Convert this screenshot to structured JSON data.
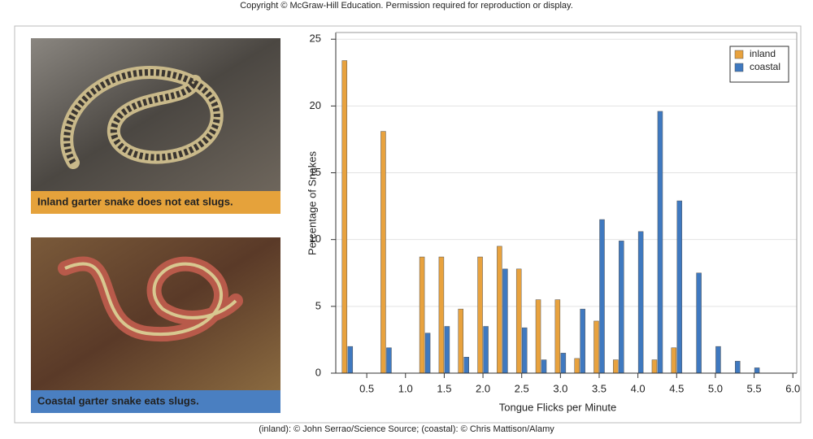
{
  "copyright": "Copyright © McGraw-Hill Education. Permission required for reproduction or display.",
  "panels": [
    {
      "caption": "Inland garter snake does not eat slugs."
    },
    {
      "caption": "Coastal garter snake eats slugs."
    }
  ],
  "credit": "(inland): © John Serrao/Science Source; (coastal): © Chris Mattison/Alamy",
  "chart_data": {
    "type": "bar",
    "xlabel": "Tongue Flicks per Minute",
    "ylabel": "Percentage of Snakes",
    "x": [
      0.25,
      0.75,
      1.25,
      1.5,
      1.75,
      2.0,
      2.25,
      2.5,
      2.75,
      3.0,
      3.25,
      3.5,
      3.75,
      4.0,
      4.25,
      4.5,
      4.75,
      5.0,
      5.25,
      5.5
    ],
    "series": [
      {
        "name": "inland",
        "color": "#e8a23e",
        "values": [
          23.4,
          18.1,
          8.7,
          8.7,
          4.8,
          8.7,
          9.5,
          7.8,
          5.5,
          5.5,
          1.1,
          3.9,
          1.0,
          0,
          1.0,
          1.9,
          0,
          0,
          0,
          0
        ]
      },
      {
        "name": "coastal",
        "color": "#3f79c0",
        "values": [
          2.0,
          1.9,
          3.0,
          3.5,
          1.2,
          3.5,
          7.8,
          3.4,
          1.0,
          1.5,
          4.8,
          11.5,
          9.9,
          10.6,
          19.6,
          12.9,
          7.5,
          2.0,
          0.9,
          0.4
        ]
      }
    ],
    "xlim": [
      0.1,
      6.05
    ],
    "ylim": [
      0,
      25.5
    ],
    "xticks": [
      0.5,
      {
        "value": 1,
        "label": "1.0"
      },
      1.5,
      {
        "value": 2,
        "label": "2.0"
      },
      2.5,
      {
        "value": 3,
        "label": "3.0"
      },
      3.5,
      {
        "value": 4,
        "label": "4.0"
      },
      4.5,
      {
        "value": 5,
        "label": "5.0"
      },
      5.5,
      {
        "value": 6,
        "label": "6.0"
      }
    ],
    "yticks": [
      0,
      5,
      10,
      15,
      20,
      25
    ],
    "grid": true,
    "legend": "upper right"
  }
}
